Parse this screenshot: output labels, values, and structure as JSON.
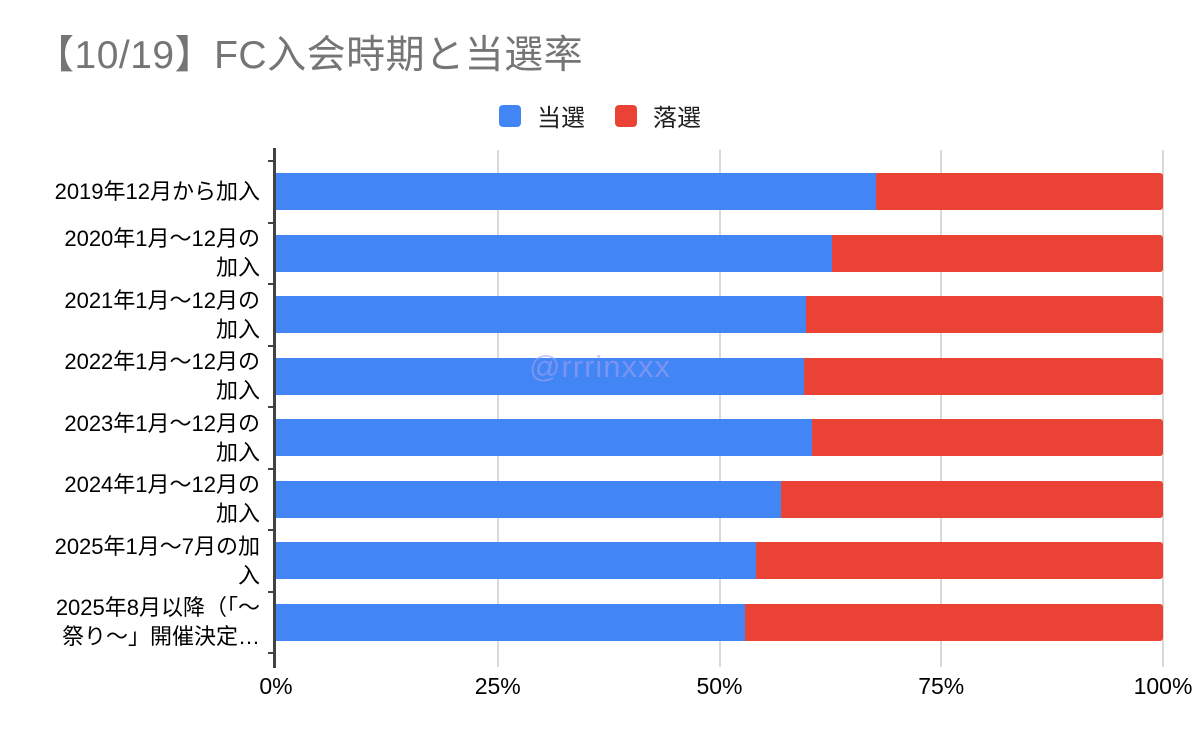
{
  "chart_data": {
    "type": "bar",
    "orientation": "horizontal",
    "stacked": "percent",
    "title": "【10/19】FC入会時期と当選率",
    "title_color": "#757575",
    "watermark": "@rrrinxxx",
    "legend_position": "top",
    "gridlines": true,
    "gridline_color": "#d9d9d9",
    "axis_color": "#424242",
    "categories": [
      "2019年12月から加入",
      "2020年1月〜12月の加入",
      "2021年1月〜12月の加入",
      "2022年1月〜12月の加入",
      "2023年1月〜12月の加入",
      "2024年1月〜12月の加入",
      "2025年1月〜7月の加入",
      "2025年8月以降（「〜祭り〜」開催決定…"
    ],
    "category_display_lines": [
      [
        "2019年12月から加入"
      ],
      [
        "2020年1月〜12月の",
        "加入"
      ],
      [
        "2021年1月〜12月の",
        "加入"
      ],
      [
        "2022年1月〜12月の",
        "加入"
      ],
      [
        "2023年1月〜12月の",
        "加入"
      ],
      [
        "2024年1月〜12月の",
        "加入"
      ],
      [
        "2025年1月〜7月の加",
        "入"
      ],
      [
        "2025年8月以降（「〜",
        "祭り〜」開催決定…"
      ]
    ],
    "series": [
      {
        "name": "当選",
        "color": "#4285f4",
        "values": [
          67.6,
          62.7,
          59.7,
          59.5,
          60.4,
          56.9,
          54.1,
          52.9
        ]
      },
      {
        "name": "落選",
        "color": "#ea4335",
        "values": [
          32.4,
          37.3,
          40.3,
          40.5,
          39.6,
          43.1,
          45.9,
          47.1
        ]
      }
    ],
    "xlabel": "",
    "ylabel": "",
    "x_axis": {
      "ticks": [
        "0%",
        "25%",
        "50%",
        "75%",
        "100%"
      ],
      "range": [
        0,
        100
      ],
      "unit": "%"
    }
  }
}
